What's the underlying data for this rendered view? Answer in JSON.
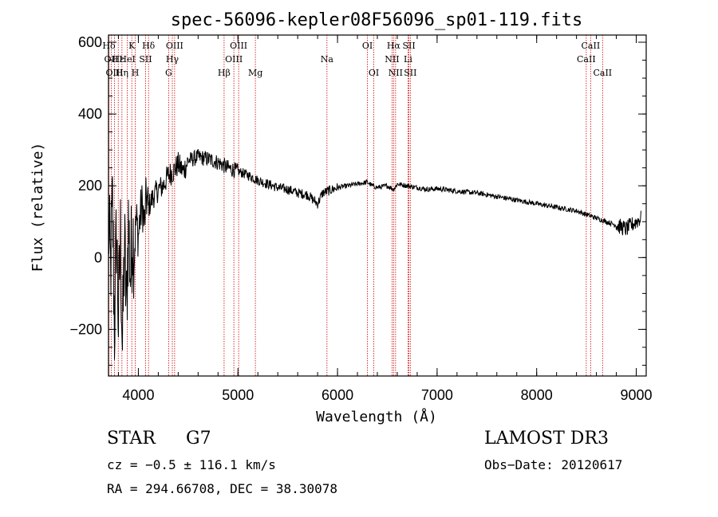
{
  "colors": {
    "axis": "#000000",
    "spectrum": "#000000",
    "lines": "#cc0000",
    "background": "#ffffff"
  },
  "chart_data": {
    "type": "line",
    "title": "spec-56096-kepler08F56096_sp01-119.fits",
    "xlabel": "Wavelength (Å)",
    "ylabel": "Flux (relative)",
    "xlim": [
      3700,
      9100
    ],
    "ylim": [
      -330,
      620
    ],
    "xticks": [
      4000,
      5000,
      6000,
      7000,
      8000,
      9000
    ],
    "yticks": [
      -200,
      0,
      200,
      400,
      600
    ],
    "x_minor_step": 200,
    "y_minor_step": 50,
    "series": [
      {
        "name": "flux",
        "x": [
          3700,
          3720,
          3740,
          3760,
          3780,
          3800,
          3820,
          3840,
          3860,
          3880,
          3900,
          3920,
          3940,
          3960,
          3980,
          4000,
          4020,
          4040,
          4060,
          4080,
          4100,
          4150,
          4200,
          4250,
          4300,
          4350,
          4400,
          4450,
          4500,
          4600,
          4700,
          4800,
          4900,
          5000,
          5100,
          5200,
          5300,
          5400,
          5500,
          5600,
          5700,
          5800,
          5850,
          5900,
          5950,
          6000,
          6100,
          6200,
          6300,
          6350,
          6400,
          6500,
          6563,
          6600,
          6700,
          6800,
          6900,
          7000,
          7200,
          7400,
          7600,
          7800,
          8000,
          8200,
          8400,
          8600,
          8800,
          8900,
          9000,
          9050
        ],
        "y": [
          100,
          -40,
          150,
          -200,
          80,
          -180,
          60,
          -260,
          40,
          -150,
          100,
          -50,
          80,
          20,
          110,
          60,
          120,
          150,
          90,
          170,
          140,
          170,
          190,
          200,
          230,
          240,
          260,
          240,
          270,
          280,
          275,
          265,
          250,
          240,
          230,
          215,
          205,
          195,
          190,
          180,
          175,
          150,
          180,
          185,
          190,
          195,
          200,
          205,
          210,
          200,
          195,
          200,
          190,
          205,
          200,
          195,
          190,
          192,
          185,
          180,
          170,
          160,
          150,
          140,
          130,
          110,
          90,
          80,
          100,
          110
        ]
      }
    ],
    "spectral_lines": [
      {
        "name": "Hδ",
        "wavelength": 3704,
        "row": 1
      },
      {
        "name": "OII",
        "wavelength": 3727,
        "row": 2
      },
      {
        "name": "OIII",
        "wavelength": 3760,
        "row": 3
      },
      {
        "name": "Hε",
        "wavelength": 3798,
        "row": 2
      },
      {
        "name": "Hη",
        "wavelength": 3835,
        "row": 3
      },
      {
        "name": "HeI",
        "wavelength": 3889,
        "row": 2
      },
      {
        "name": "K",
        "wavelength": 3934,
        "row": 1
      },
      {
        "name": "H",
        "wavelength": 3969,
        "row": 3
      },
      {
        "name": "SII",
        "wavelength": 4072,
        "row": 2
      },
      {
        "name": "Hδ",
        "wavelength": 4102,
        "row": 1
      },
      {
        "name": "G",
        "wavelength": 4304,
        "row": 3
      },
      {
        "name": "Hγ",
        "wavelength": 4341,
        "row": 2
      },
      {
        "name": "OIII",
        "wavelength": 4364,
        "row": 1
      },
      {
        "name": "Hβ",
        "wavelength": 4861,
        "row": 3
      },
      {
        "name": "OIII",
        "wavelength": 4959,
        "row": 2
      },
      {
        "name": "OIII",
        "wavelength": 5007,
        "row": 1
      },
      {
        "name": "Mg",
        "wavelength": 5175,
        "row": 3
      },
      {
        "name": "Na",
        "wavelength": 5894,
        "row": 2
      },
      {
        "name": "OI",
        "wavelength": 6300,
        "row": 1
      },
      {
        "name": "OI",
        "wavelength": 6364,
        "row": 3
      },
      {
        "name": "NII",
        "wavelength": 6548,
        "row": 2
      },
      {
        "name": "Hα",
        "wavelength": 6563,
        "row": 1
      },
      {
        "name": "NII",
        "wavelength": 6583,
        "row": 3
      },
      {
        "name": "Li",
        "wavelength": 6708,
        "row": 2
      },
      {
        "name": "SII",
        "wavelength": 6717,
        "row": 1
      },
      {
        "name": "SII",
        "wavelength": 6731,
        "row": 3
      },
      {
        "name": "CaII",
        "wavelength": 8498,
        "row": 2
      },
      {
        "name": "CaII",
        "wavelength": 8542,
        "row": 1
      },
      {
        "name": "CaII",
        "wavelength": 8662,
        "row": 3
      }
    ]
  },
  "info": {
    "class_label": "STAR",
    "subclass": "G7",
    "survey": "LAMOST DR3",
    "redshift_text": "cz = −0.5 ± 116.1 km/s",
    "obs_date": "Obs−Date: 20120617",
    "coords_text": "RA = 294.66708, DEC =  38.30078"
  }
}
